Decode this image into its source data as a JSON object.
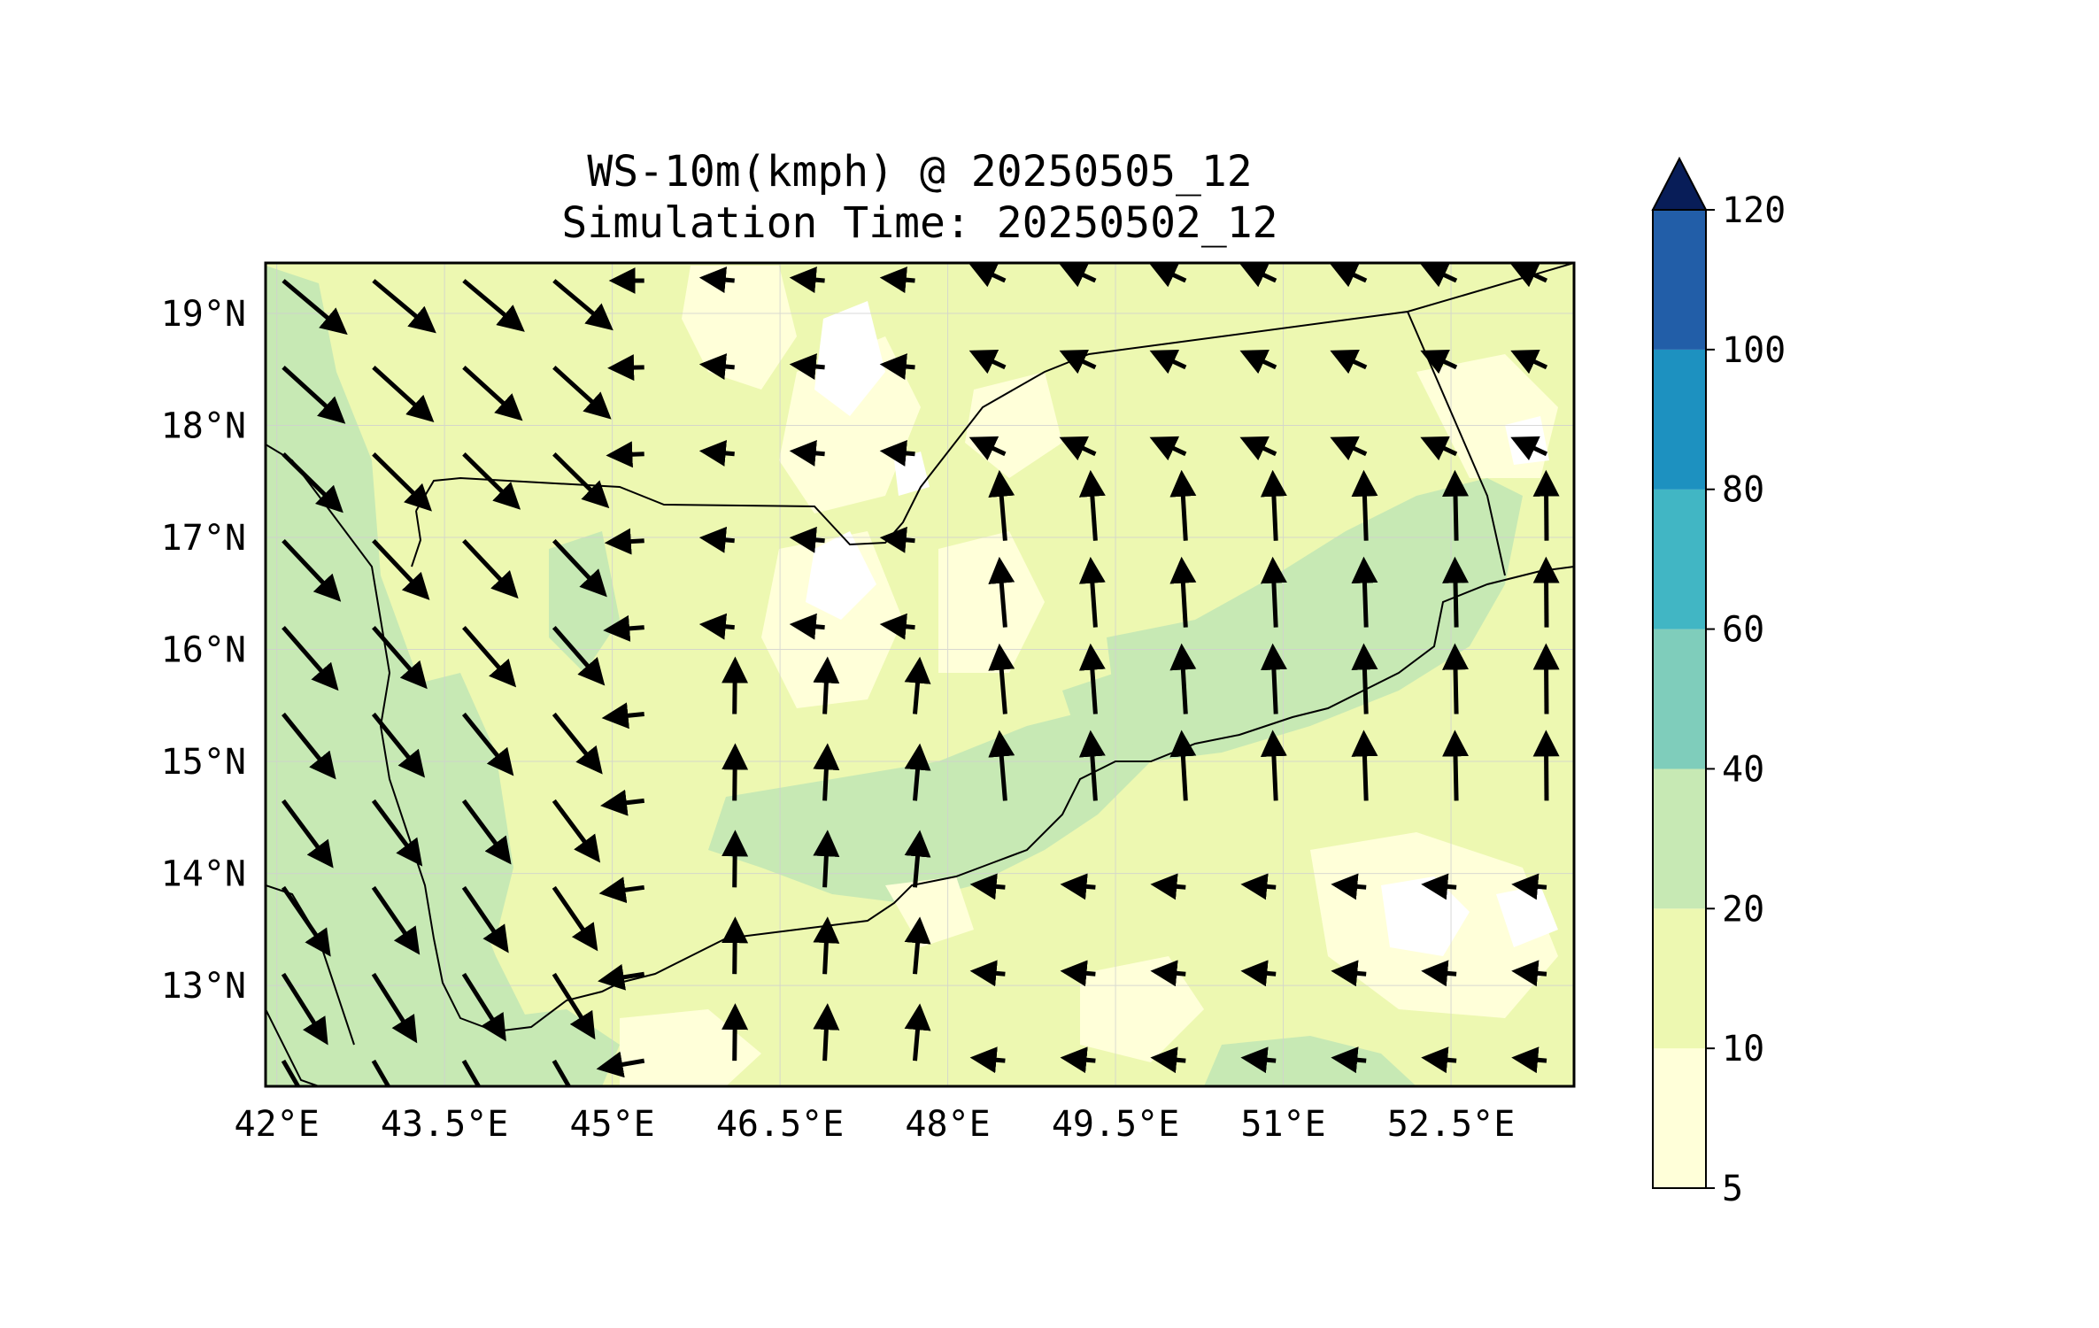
{
  "title": "WS-10m(kmph) @ 20250505_12",
  "subtitle": "Simulation Time: 20250502_12",
  "map": {
    "lon_range": [
      41.9,
      53.6
    ],
    "lat_range": [
      12.1,
      19.45
    ],
    "x_ticks": [
      "42°E",
      "43.5°E",
      "45°E",
      "46.5°E",
      "48°E",
      "49.5°E",
      "51°E",
      "52.5°E"
    ],
    "x_tick_values": [
      42,
      43.5,
      45,
      46.5,
      48,
      49.5,
      51,
      52.5
    ],
    "y_ticks": [
      "13°N",
      "14°N",
      "15°N",
      "16°N",
      "17°N",
      "18°N",
      "19°N"
    ],
    "y_tick_values": [
      13,
      14,
      15,
      16,
      17,
      18,
      19
    ],
    "gridlines": true,
    "base_fill": "wind speed 10-20 kmph (#edf8b1) dominant, patches 20-40 kmph (#c7e9b4) along coasts and eastern plateau, patches 5-10 kmph (#ffffd9) inland"
  },
  "colorbar": {
    "levels": [
      "5",
      "10",
      "20",
      "40",
      "60",
      "80",
      "100",
      "120"
    ],
    "colors": [
      "#ffffd9",
      "#edf8b1",
      "#c7e9b4",
      "#7fcdbb",
      "#41b6c4",
      "#1d91c0",
      "#225ea8",
      "#0c2c84"
    ],
    "extend": "max",
    "extend_color": "#081d58"
  }
}
